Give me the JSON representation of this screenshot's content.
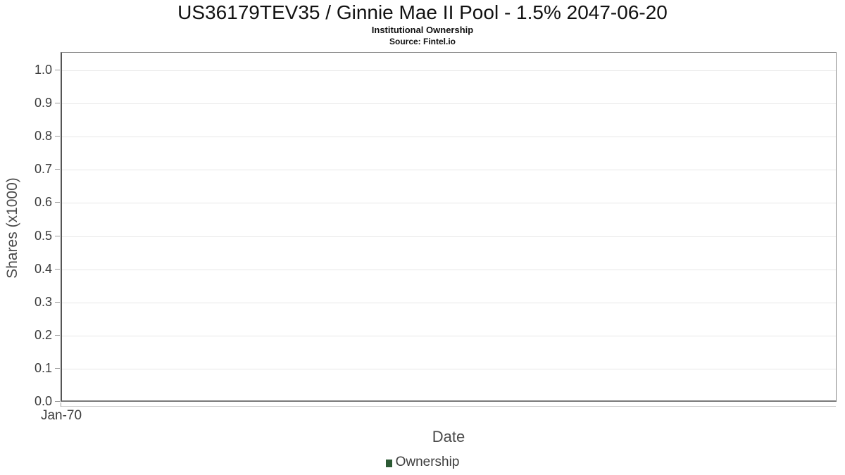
{
  "chart": {
    "title": "US36179TEV35 / Ginnie Mae II Pool - 1.5% 2047-06-20",
    "subtitle": "Institutional Ownership",
    "source": "Source: Fintel.io",
    "y_axis": {
      "title": "Shares (x1000)",
      "ticks": [
        "1.0",
        "0.9",
        "0.8",
        "0.7",
        "0.6",
        "0.5",
        "0.4",
        "0.3",
        "0.2",
        "0.1",
        "0.0"
      ]
    },
    "x_axis": {
      "title": "Date",
      "ticks": [
        "Jan-70"
      ]
    },
    "legend": {
      "label": "Ownership",
      "marker_color": "#2c5a34"
    },
    "colors": {
      "gridline": "#e7e7e7",
      "plot_border": "#8a8a8a",
      "text": "#3c3c3c"
    }
  },
  "chart_data": {
    "type": "line",
    "title": "US36179TEV35 / Ginnie Mae II Pool - 1.5% 2047-06-20",
    "subtitle": "Institutional Ownership",
    "source": "Source: Fintel.io",
    "xlabel": "Date",
    "ylabel": "Shares (x1000)",
    "x_tick_labels": [
      "Jan-70"
    ],
    "y_tick_labels": [
      1.0,
      0.9,
      0.8,
      0.7,
      0.6,
      0.5,
      0.4,
      0.3,
      0.2,
      0.1,
      0.0
    ],
    "ylim": [
      0,
      1.05
    ],
    "grid": true,
    "legend_position": "bottom",
    "series": [
      {
        "name": "Ownership",
        "color": "#2c5a34",
        "x": [],
        "values": []
      }
    ],
    "note": "chart area is empty - no data points plotted"
  }
}
